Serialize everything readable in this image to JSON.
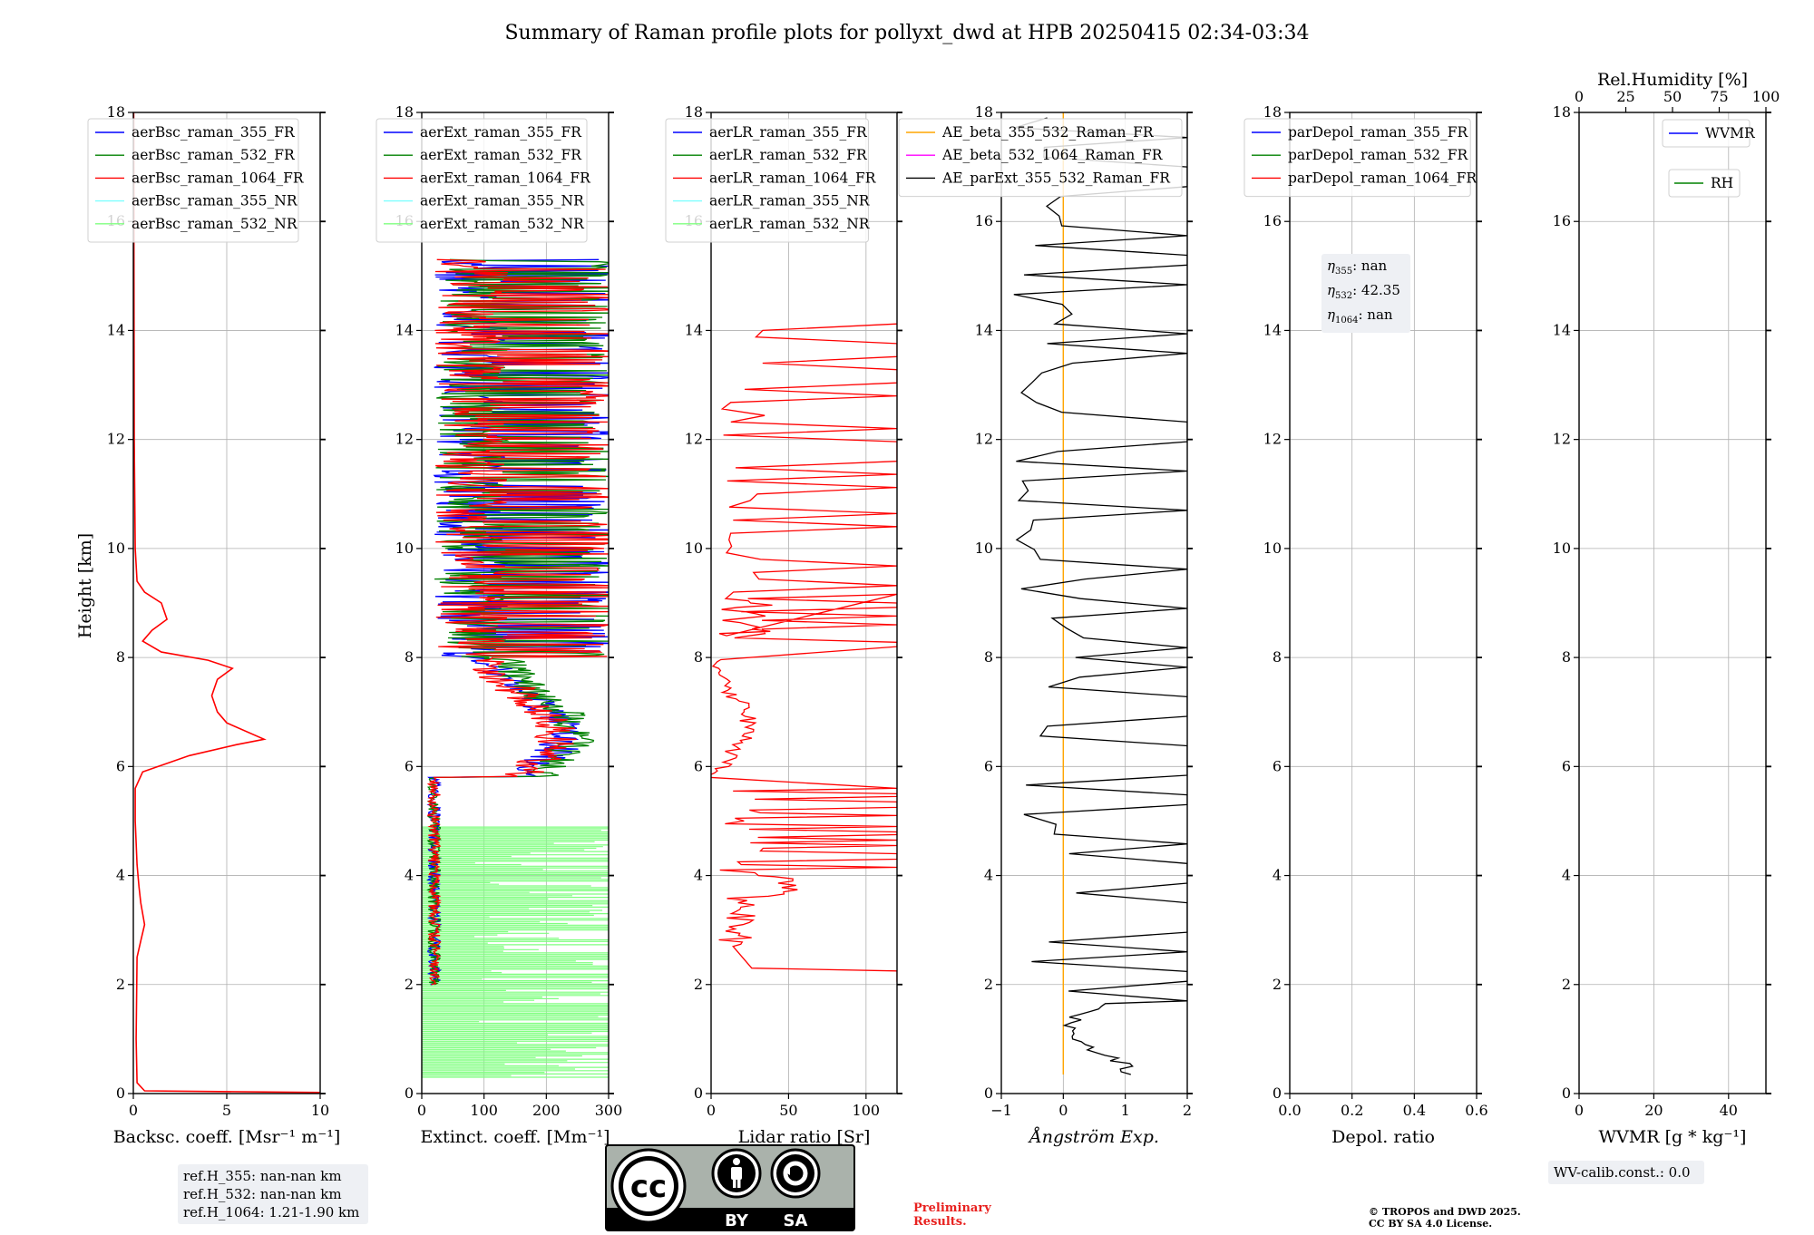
{
  "title": "Summary of Raman profile plots for pollyxt_dwd at HPB 20250415 02:34-03:34",
  "ylabel": "Height [km]",
  "yticks": [
    "0",
    "2",
    "4",
    "6",
    "8",
    "10",
    "12",
    "14",
    "16",
    "18"
  ],
  "ylim": [
    0,
    18
  ],
  "colors": {
    "b355": "#0000ff",
    "g532": "#008000",
    "r1064": "#ff0000",
    "c355nr": "#7fffff",
    "lg532nr": "#7fff7f",
    "ae1": "#ffa500",
    "ae2": "#ff00ff",
    "ae3": "#000000",
    "grid": "#b0b0b0"
  },
  "chart_data": [
    {
      "type": "line",
      "xlabel": "Backsc. coeff. [Msr⁻¹ m⁻¹]",
      "xlim": [
        0,
        10
      ],
      "xticks": [
        "0",
        "5",
        "10"
      ],
      "legend": [
        "aerBsc_raman_355_FR",
        "aerBsc_raman_532_FR",
        "aerBsc_raman_1064_FR",
        "aerBsc_raman_355_NR",
        "aerBsc_raman_532_NR"
      ],
      "series": [
        {
          "name": "aerBsc_raman_1064_FR",
          "points": [
            [
              10,
              0.02
            ],
            [
              0.6,
              0.05
            ],
            [
              0.2,
              0.2
            ],
            [
              0.15,
              1
            ],
            [
              0.2,
              2.5
            ],
            [
              0.4,
              2.8
            ],
            [
              0.6,
              3.1
            ],
            [
              0.4,
              3.5
            ],
            [
              0.3,
              3.8
            ],
            [
              0.2,
              4.2
            ],
            [
              0.1,
              5
            ],
            [
              0.1,
              5.6
            ],
            [
              0.5,
              5.9
            ],
            [
              3,
              6.2
            ],
            [
              5.5,
              6.4
            ],
            [
              7,
              6.5
            ],
            [
              5,
              6.8
            ],
            [
              4.5,
              7
            ],
            [
              4.2,
              7.3
            ],
            [
              4.5,
              7.6
            ],
            [
              5.3,
              7.8
            ],
            [
              4,
              7.95
            ],
            [
              1.5,
              8.1
            ],
            [
              0.5,
              8.3
            ],
            [
              1,
              8.5
            ],
            [
              1.8,
              8.7
            ],
            [
              1.5,
              9
            ],
            [
              0.6,
              9.2
            ],
            [
              0.2,
              9.4
            ],
            [
              0.1,
              10
            ],
            [
              0.05,
              12
            ],
            [
              0.02,
              18
            ]
          ]
        }
      ]
    },
    {
      "type": "line",
      "xlabel": "Extinct. coeff. [Mm⁻¹]",
      "xlim": [
        0,
        300
      ],
      "xticks": [
        "0",
        "100",
        "200",
        "300"
      ],
      "legend": [
        "aerExt_raman_355_FR",
        "aerExt_raman_532_FR",
        "aerExt_raman_1064_FR",
        "aerExt_raman_355_NR",
        "aerExt_raman_532_NR"
      ],
      "series": []
    },
    {
      "type": "line",
      "xlabel": "Lidar ratio [Sr]",
      "xlim": [
        0,
        120
      ],
      "xticks": [
        "0",
        "50",
        "100"
      ],
      "legend": [
        "aerLR_raman_355_FR",
        "aerLR_raman_532_FR",
        "aerLR_raman_1064_FR",
        "aerLR_raman_355_NR",
        "aerLR_raman_532_NR"
      ],
      "series": []
    },
    {
      "type": "line",
      "xlabel": "Ångström Exp.",
      "xlim": [
        -1,
        2
      ],
      "xticks": [
        "−1",
        "0",
        "1",
        "2"
      ],
      "legend": [
        "AE_beta_355_532_Raman_FR",
        "AE_beta_532_1064_Raman_FR",
        "AE_parExt_355_532_Raman_FR"
      ],
      "series": [
        {
          "name": "AE_beta_532_1064_Raman_FR",
          "points": [
            [
              0,
              0.35
            ],
            [
              0,
              18
            ]
          ]
        }
      ]
    },
    {
      "type": "line",
      "xlabel": "Depol. ratio",
      "xlim": [
        0,
        0.6
      ],
      "xticks": [
        "0.0",
        "0.2",
        "0.4",
        "0.6"
      ],
      "legend": [
        "parDepol_raman_355_FR",
        "parDepol_raman_532_FR",
        "parDepol_raman_1064_FR"
      ],
      "series": []
    },
    {
      "type": "line",
      "xlabel": "WVMR [g * kg⁻¹]",
      "xlim": [
        0,
        50
      ],
      "xticks": [
        "0",
        "20",
        "40"
      ],
      "x2label": "Rel.Humidity [%]",
      "x2ticks": [
        "0",
        "25",
        "50",
        "75",
        "100"
      ],
      "legend": [
        "WVMR",
        "RH"
      ],
      "series": []
    }
  ],
  "eta": {
    "e355": "nan",
    "e532": "42.35",
    "e1064": "nan"
  },
  "eta_labels": {
    "l355": "η",
    "s355": "355",
    "l532": "η",
    "s532": "532",
    "l1064": "η",
    "s1064": "1064"
  },
  "refh": {
    "l1": "ref.H_355: nan-nan km",
    "l2": "ref.H_532: nan-nan km",
    "l3": "ref.H_1064: 1.21-1.90 km"
  },
  "wvcalib": "WV-calib.const.: 0.0",
  "prelim": {
    "l1": "Preliminary",
    "l2": "Results."
  },
  "copyright": {
    "l1": "© TROPOS and DWD 2025.",
    "l2": "CC BY SA 4.0 License."
  },
  "license": {
    "cc": "cc",
    "by": "BY",
    "sa": "SA"
  }
}
